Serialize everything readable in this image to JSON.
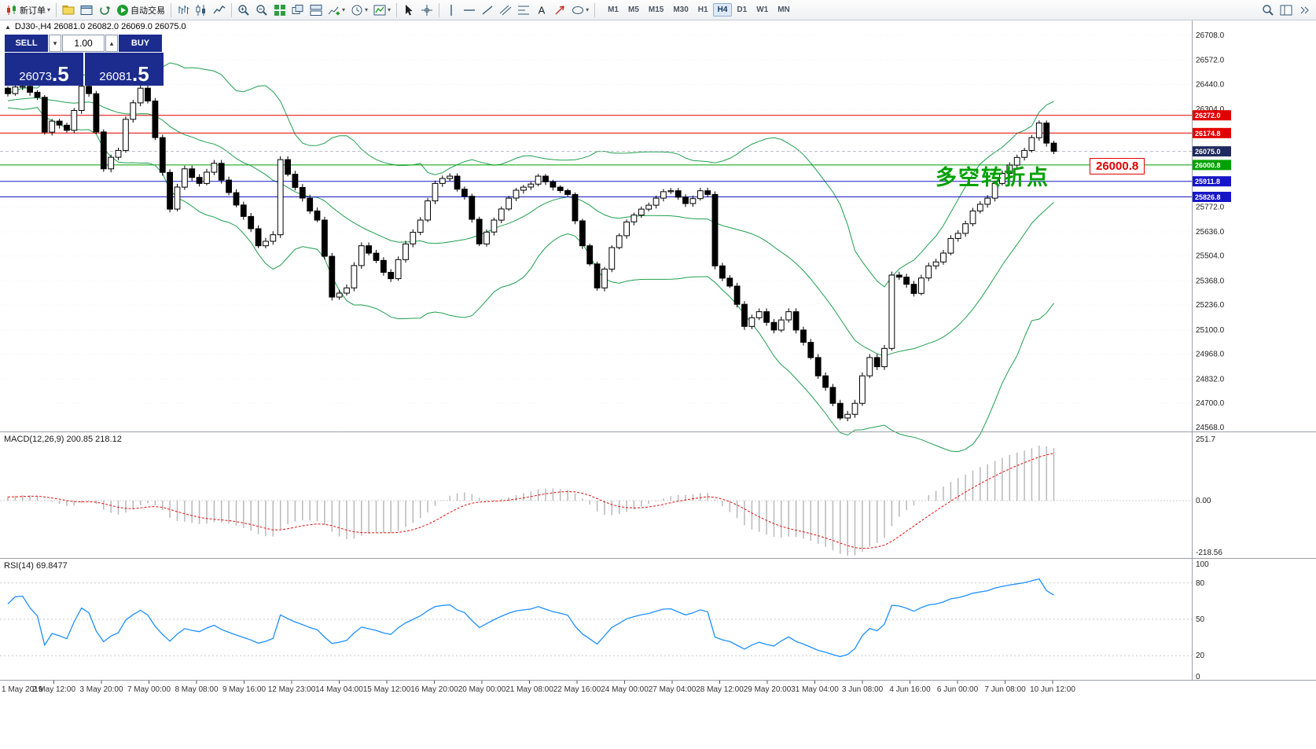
{
  "colors": {
    "panel_navy": "#1b2c8e",
    "bands": "#1fa04e",
    "macd_hist": "#b9b9b9",
    "macd_signal": "#e81010",
    "rsi_line": "#1e90ff",
    "tag_current": "#20295f",
    "annotation": "#00a000",
    "tag_red": "#e00000"
  },
  "toolbar": {
    "caret_glyph": "▾",
    "new_order_label": "新订单",
    "autotrading_label": "自动交易",
    "timeframes": [
      "M1",
      "M5",
      "M15",
      "M30",
      "H1",
      "H4",
      "D1",
      "W1",
      "MN"
    ],
    "active_timeframe": "H4",
    "items": [
      {
        "name": "new-order-button",
        "icon": "new-order",
        "label": "新订单",
        "caret": true
      },
      {
        "name": "sep"
      },
      {
        "name": "profiles-button",
        "icon": "folder-yellow"
      },
      {
        "name": "terminal-button",
        "icon": "terminal"
      },
      {
        "name": "strategy-tester-button",
        "icon": "refresh"
      },
      {
        "name": "autotrading-button",
        "icon": "play-green",
        "label": "自动交易"
      },
      {
        "name": "sep"
      },
      {
        "name": "bar-chart-button",
        "icon": "bars"
      },
      {
        "name": "candle-chart-button",
        "icon": "candles"
      },
      {
        "name": "line-chart-button",
        "icon": "line"
      },
      {
        "name": "sep"
      },
      {
        "name": "zoom-in-button",
        "icon": "zoom-in"
      },
      {
        "name": "zoom-out-button",
        "icon": "zoom-out"
      },
      {
        "name": "tile-windows-button",
        "icon": "tile"
      },
      {
        "name": "cascade-windows-button",
        "icon": "cascade"
      },
      {
        "name": "arrange-windows-button",
        "icon": "arrange"
      },
      {
        "name": "new-chart-button",
        "icon": "chart-plus",
        "caret": true
      },
      {
        "name": "period-button",
        "icon": "clock",
        "caret": true
      },
      {
        "name": "indicators-button",
        "icon": "indicator",
        "caret": true
      },
      {
        "name": "sep"
      },
      {
        "name": "cursor-button",
        "icon": "cursor"
      },
      {
        "name": "crosshair-button",
        "icon": "crosshair"
      },
      {
        "name": "sep"
      },
      {
        "name": "vertical-line-button",
        "icon": "vline"
      },
      {
        "name": "horizontal-line-button",
        "icon": "hline"
      },
      {
        "name": "trendline-button",
        "icon": "trendline"
      },
      {
        "name": "channel-button",
        "icon": "channel"
      },
      {
        "name": "fibonacci-button",
        "icon": "fibo"
      },
      {
        "name": "text-tool-button",
        "icon": "text"
      },
      {
        "name": "arrow-tool-button",
        "icon": "arrow-label"
      },
      {
        "name": "shapes-button",
        "icon": "shapes",
        "caret": true
      },
      {
        "name": "sep"
      }
    ],
    "items_right": [
      {
        "name": "search-button",
        "icon": "search"
      },
      {
        "name": "window-layout-button",
        "icon": "layout"
      },
      {
        "name": "toolbar-overflow-button",
        "icon": "chevrons"
      }
    ]
  },
  "chart": {
    "header": {
      "collapse_icon": "▲",
      "symbol_ohlc": "DJ30-,H4  26081.0 26082.0 26069.0 26075.0"
    },
    "trade_panel": {
      "sell_label": "SELL",
      "buy_label": "BUY",
      "volume": "1.00",
      "spin_down": "▾",
      "spin_up": "▴",
      "sell_price": "26073",
      "sell_price_big": ".5",
      "buy_price": "26081",
      "buy_price_big": ".5"
    },
    "annotation_text": "多空转折点",
    "price_note": "26000.8",
    "current_price": 26075.0,
    "current_price_label": "26075.0",
    "price_axis_labels": [
      "26708.0",
      "26572.0",
      "26440.0",
      "26304.0",
      "25772.0",
      "25636.0",
      "25504.0",
      "25368.0",
      "25236.0",
      "25100.0",
      "24968.0",
      "24832.0",
      "24700.0",
      "24568.0"
    ],
    "hlines": [
      {
        "price": 26272.0,
        "label": "26272.0",
        "color": "#e00000"
      },
      {
        "price": 26174.8,
        "label": "26174.8",
        "color": "#e00000"
      },
      {
        "price": 26000.8,
        "label": "26000.8",
        "color": "#00a000"
      },
      {
        "price": 25911.8,
        "label": "25911.8",
        "color": "#1616c8"
      },
      {
        "price": 25826.8,
        "label": "25826.8",
        "color": "#1616c8"
      }
    ]
  },
  "macd": {
    "label": "MACD(12,26,9) 200.85 218.12",
    "scale_top": "251.7",
    "scale_mid": "0.00",
    "scale_bottom": "-218.56"
  },
  "rsi": {
    "label": "RSI(14) 69.8477",
    "levels": [
      80,
      50,
      20
    ],
    "scale_labels": [
      "100",
      "80",
      "50",
      "20",
      "0"
    ]
  },
  "time_axis": {
    "labels": [
      "1 May 2019",
      "2 May 12:00",
      "3 May 20:00",
      "7 May 00:00",
      "8 May 08:00",
      "9 May 16:00",
      "12 May 23:00",
      "14 May 04:00",
      "15 May 12:00",
      "16 May 20:00",
      "20 May 00:00",
      "21 May 08:00",
      "22 May 16:00",
      "24 May 00:00",
      "27 May 04:00",
      "28 May 12:00",
      "29 May 20:00",
      "31 May 04:00",
      "3 Jun 08:00",
      "4 Jun 16:00",
      "6 Jun 00:00",
      "7 Jun 08:00",
      "10 Jun 12:00"
    ]
  },
  "chart_data": {
    "type": "candlestick",
    "symbol": "DJ30-",
    "timeframe": "H4",
    "price_range": [
      24568,
      26708
    ],
    "candle_count": 143,
    "close_anchors": [
      [
        0,
        26390
      ],
      [
        2,
        26430
      ],
      [
        4,
        26370
      ],
      [
        5,
        26180
      ],
      [
        6,
        26240
      ],
      [
        8,
        26190
      ],
      [
        10,
        26430
      ],
      [
        11,
        26390
      ],
      [
        13,
        25980
      ],
      [
        15,
        26080
      ],
      [
        16,
        26250
      ],
      [
        18,
        26420
      ],
      [
        19,
        26350
      ],
      [
        20,
        26150
      ],
      [
        22,
        25760
      ],
      [
        24,
        25980
      ],
      [
        26,
        25900
      ],
      [
        28,
        26010
      ],
      [
        30,
        25850
      ],
      [
        32,
        25720
      ],
      [
        34,
        25560
      ],
      [
        36,
        25620
      ],
      [
        37,
        26030
      ],
      [
        38,
        25950
      ],
      [
        40,
        25820
      ],
      [
        42,
        25700
      ],
      [
        44,
        25280
      ],
      [
        46,
        25330
      ],
      [
        48,
        25560
      ],
      [
        50,
        25480
      ],
      [
        52,
        25380
      ],
      [
        54,
        25570
      ],
      [
        56,
        25700
      ],
      [
        58,
        25900
      ],
      [
        60,
        25940
      ],
      [
        62,
        25830
      ],
      [
        64,
        25570
      ],
      [
        66,
        25700
      ],
      [
        68,
        25820
      ],
      [
        70,
        25880
      ],
      [
        72,
        25940
      ],
      [
        74,
        25880
      ],
      [
        76,
        25840
      ],
      [
        78,
        25560
      ],
      [
        80,
        25330
      ],
      [
        82,
        25550
      ],
      [
        84,
        25690
      ],
      [
        86,
        25760
      ],
      [
        88,
        25820
      ],
      [
        90,
        25860
      ],
      [
        92,
        25790
      ],
      [
        94,
        25860
      ],
      [
        95,
        25840
      ],
      [
        96,
        25450
      ],
      [
        98,
        25340
      ],
      [
        100,
        25120
      ],
      [
        102,
        25200
      ],
      [
        104,
        25100
      ],
      [
        106,
        25200
      ],
      [
        107,
        25100
      ],
      [
        109,
        24950
      ],
      [
        110,
        24850
      ],
      [
        112,
        24700
      ],
      [
        113,
        24620
      ],
      [
        114,
        24640
      ],
      [
        115,
        24700
      ],
      [
        116,
        24850
      ],
      [
        117,
        24950
      ],
      [
        118,
        24900
      ],
      [
        119,
        25000
      ],
      [
        120,
        25400
      ],
      [
        122,
        25350
      ],
      [
        123,
        25300
      ],
      [
        125,
        25450
      ],
      [
        127,
        25520
      ],
      [
        128,
        25600
      ],
      [
        130,
        25680
      ],
      [
        131,
        25750
      ],
      [
        133,
        25820
      ],
      [
        134,
        25900
      ],
      [
        136,
        26000
      ],
      [
        138,
        26080
      ],
      [
        139,
        26150
      ],
      [
        140,
        26230
      ],
      [
        141,
        26120
      ],
      [
        142,
        26075
      ]
    ],
    "synth": {
      "pre_count": 30,
      "pre_base": 26290,
      "pre_slope": 3,
      "pre_amp": 15,
      "wiggle_amp1": 18,
      "wiggle_f1": 1.93,
      "wiggle_amp2": 10,
      "wiggle_f2": 0.57,
      "wick_base": 10,
      "wick_amp": 9
    },
    "indicators": {
      "bollinger_period": 20,
      "bollinger_dev": 2,
      "macd": [
        12,
        26,
        9
      ],
      "rsi": 14
    }
  }
}
